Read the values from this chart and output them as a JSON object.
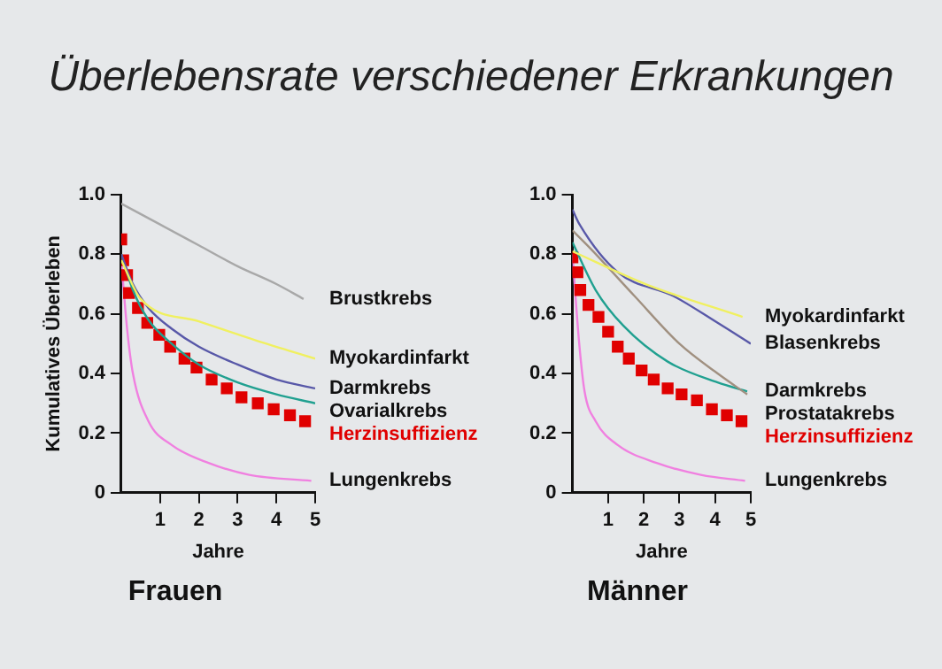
{
  "chart_data": [
    {
      "type": "line",
      "title": "Überlebensrate verschiedener Erkrankungen",
      "subtitle": "Frauen",
      "xlabel": "Jahre",
      "ylabel": "Kumulatives Überleben",
      "xlim": [
        0,
        5
      ],
      "xticks": [
        1,
        2,
        3,
        4,
        5
      ],
      "ylim": [
        0,
        1
      ],
      "yticks": [
        0,
        0.2,
        0.4,
        0.6,
        0.8,
        {
          "value": 1,
          "label": "1.0"
        }
      ],
      "grid": false,
      "legend": false,
      "marker": "none",
      "series": [
        {
          "name": "Brustkrebs",
          "color": "#a8a8a8",
          "x": [
            0,
            1,
            2,
            3,
            4,
            4.7
          ],
          "values": [
            0.97,
            0.9,
            0.83,
            0.76,
            0.7,
            0.65
          ]
        },
        {
          "name": "Myokardinfarkt",
          "color": "#f0f060",
          "x": [
            0,
            0.5,
            2,
            3.5,
            5
          ],
          "values": [
            0.78,
            0.65,
            0.575,
            0.51,
            0.45
          ]
        },
        {
          "name": "Darmkrebs",
          "color": "#5858a8",
          "x": [
            0,
            0.3,
            0.7,
            1.3,
            2,
            3,
            4,
            5
          ],
          "values": [
            0.8,
            0.7,
            0.62,
            0.55,
            0.49,
            0.43,
            0.38,
            0.35
          ]
        },
        {
          "name": "Ovarialkrebs",
          "color": "#20a090",
          "x": [
            0,
            0.3,
            0.7,
            1.3,
            2,
            3,
            4,
            5
          ],
          "values": [
            0.8,
            0.68,
            0.58,
            0.5,
            0.43,
            0.37,
            0.33,
            0.3
          ]
        },
        {
          "name": "Herzinsuffizienz",
          "type": "scatter",
          "marker": "square",
          "color": "#e00000",
          "x": [
            0,
            0.05,
            0.15,
            0.2,
            0.43,
            0.67,
            0.98,
            1.26,
            1.63,
            1.94,
            2.33,
            2.72,
            3.1,
            3.52,
            3.93,
            4.35,
            4.74
          ],
          "values": [
            0.85,
            0.78,
            0.73,
            0.67,
            0.62,
            0.57,
            0.53,
            0.49,
            0.45,
            0.42,
            0.38,
            0.35,
            0.32,
            0.3,
            0.28,
            0.26,
            0.24
          ]
        },
        {
          "name": "Lungenkrebs",
          "color": "#f080e0",
          "x": [
            0,
            0.15,
            0.3,
            0.7,
            1.3,
            2.25,
            3.3,
            4.9
          ],
          "values": [
            0.78,
            0.55,
            0.4,
            0.24,
            0.16,
            0.1,
            0.06,
            0.04
          ]
        }
      ]
    },
    {
      "type": "line",
      "subtitle": "Männer",
      "xlabel": "Jahre",
      "xlim": [
        0,
        5
      ],
      "xticks": [
        1,
        2,
        3,
        4,
        5
      ],
      "ylim": [
        0,
        1
      ],
      "yticks": [
        0,
        0.2,
        0.4,
        0.6,
        0.8,
        {
          "value": 1,
          "label": "1.0"
        }
      ],
      "grid": false,
      "legend": false,
      "marker": "none",
      "series": [
        {
          "name": "Myokardinfarkt",
          "color": "#f0f060",
          "x": [
            0,
            2.05,
            4.77
          ],
          "values": [
            0.81,
            0.7,
            0.59
          ]
        },
        {
          "name": "Blasenkrebs",
          "color": "#5858a8",
          "x": [
            0,
            0.2,
            1.27,
            2.83,
            4.07,
            5
          ],
          "values": [
            0.95,
            0.9,
            0.74,
            0.66,
            0.57,
            0.5
          ]
        },
        {
          "name": "Prostatakrebs",
          "color": "#a09080",
          "x": [
            0,
            0.5,
            1.74,
            3,
            4.07,
            4.9
          ],
          "values": [
            0.88,
            0.82,
            0.66,
            0.5,
            0.4,
            0.33
          ]
        },
        {
          "name": "Darmkrebs",
          "color": "#20a090",
          "x": [
            0,
            0.65,
            1.43,
            2.67,
            4.07,
            4.9
          ],
          "values": [
            0.84,
            0.68,
            0.56,
            0.44,
            0.37,
            0.34
          ]
        },
        {
          "name": "Herzinsuffizienz",
          "type": "scatter",
          "marker": "square",
          "color": "#e00000",
          "x": [
            0,
            0.14,
            0.22,
            0.45,
            0.73,
            1,
            1.27,
            1.58,
            1.94,
            2.28,
            2.67,
            3.06,
            3.49,
            3.91,
            4.33,
            4.74
          ],
          "values": [
            0.79,
            0.74,
            0.68,
            0.63,
            0.59,
            0.54,
            0.49,
            0.45,
            0.41,
            0.38,
            0.35,
            0.33,
            0.31,
            0.28,
            0.26,
            0.24
          ]
        },
        {
          "name": "Lungenkrebs",
          "color": "#f080e0",
          "x": [
            0,
            0.19,
            0.34,
            0.65,
            1.27,
            2.36,
            3.6,
            4.84
          ],
          "values": [
            0.8,
            0.5,
            0.34,
            0.24,
            0.16,
            0.1,
            0.06,
            0.04
          ]
        }
      ]
    }
  ]
}
